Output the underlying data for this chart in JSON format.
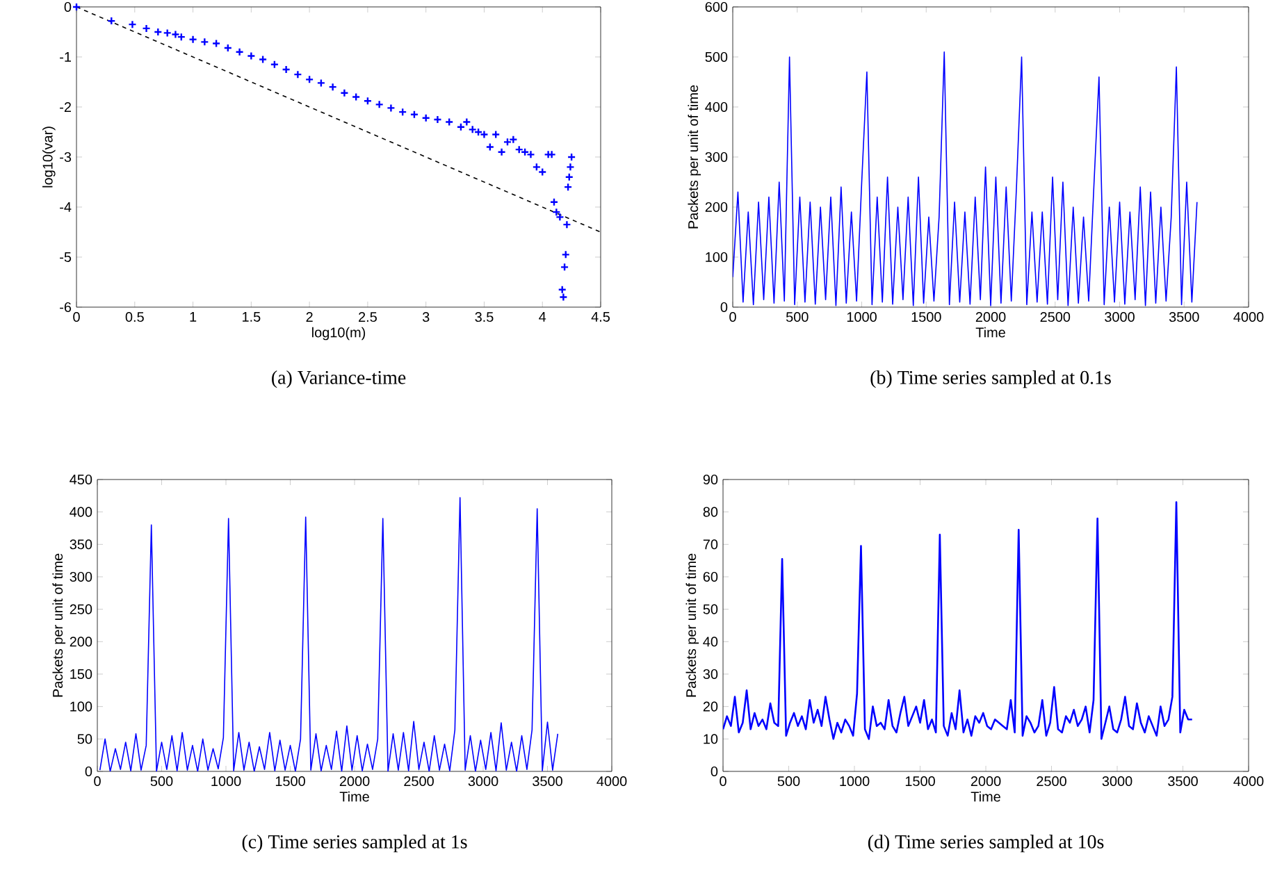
{
  "chart_data": [
    {
      "type": "scatter",
      "title": "(a) Variance-time",
      "xlabel": "log10(m)",
      "ylabel": "log10(var)",
      "xlim": [
        0,
        4.5
      ],
      "ylim": [
        -6,
        0
      ],
      "xticks": [
        0,
        0.5,
        1,
        1.5,
        2,
        2.5,
        3,
        3.5,
        4,
        4.5
      ],
      "yticks": [
        -6,
        -5,
        -4,
        -3,
        -2,
        -1,
        0
      ],
      "series": [
        {
          "type": "scatter",
          "color": "#0000ff",
          "marker": "cross",
          "x": [
            0,
            0.3,
            0.48,
            0.6,
            0.7,
            0.78,
            0.85,
            0.9,
            1.0,
            1.1,
            1.2,
            1.3,
            1.4,
            1.5,
            1.6,
            1.7,
            1.8,
            1.9,
            2.0,
            2.1,
            2.2,
            2.3,
            2.4,
            2.5,
            2.6,
            2.7,
            2.8,
            2.9,
            3.0,
            3.1,
            3.2,
            3.3,
            3.35,
            3.4,
            3.45,
            3.5,
            3.55,
            3.6,
            3.65,
            3.7,
            3.75,
            3.8,
            3.85,
            3.9,
            3.95,
            4.0,
            4.05,
            4.08,
            4.1,
            4.12,
            4.15,
            4.17,
            4.18,
            4.19,
            4.2,
            4.21,
            4.22,
            4.23,
            4.24,
            4.25
          ],
          "values": [
            0,
            -0.28,
            -0.35,
            -0.43,
            -0.5,
            -0.52,
            -0.55,
            -0.6,
            -0.65,
            -0.7,
            -0.73,
            -0.82,
            -0.9,
            -0.98,
            -1.05,
            -1.15,
            -1.25,
            -1.35,
            -1.45,
            -1.52,
            -1.6,
            -1.72,
            -1.8,
            -1.88,
            -1.95,
            -2.02,
            -2.1,
            -2.15,
            -2.22,
            -2.25,
            -2.3,
            -2.4,
            -2.3,
            -2.45,
            -2.5,
            -2.55,
            -2.8,
            -2.55,
            -2.9,
            -2.7,
            -2.65,
            -2.85,
            -2.9,
            -2.95,
            -3.2,
            -3.3,
            -2.95,
            -2.95,
            -3.9,
            -4.1,
            -4.2,
            -5.65,
            -5.8,
            -5.2,
            -4.95,
            -4.35,
            -3.6,
            -3.4,
            -3.2,
            -3.0
          ]
        },
        {
          "type": "line",
          "color": "#000000",
          "line_style": "dashed",
          "x": [
            0,
            4.5
          ],
          "values": [
            0,
            -4.5
          ]
        }
      ]
    },
    {
      "type": "line",
      "title": "(b) Time series sampled at 0.1s",
      "xlabel": "Time",
      "ylabel": "Packets per unit of time",
      "xlim": [
        0,
        4000
      ],
      "ylim": [
        0,
        600
      ],
      "xticks": [
        0,
        500,
        1000,
        1500,
        2000,
        2500,
        3000,
        3500,
        4000
      ],
      "yticks": [
        0,
        100,
        200,
        300,
        400,
        500,
        600
      ],
      "series": [
        {
          "color": "#0000ff",
          "x": [
            0,
            40,
            80,
            120,
            160,
            200,
            240,
            280,
            320,
            360,
            400,
            440,
            480,
            520,
            560,
            600,
            640,
            680,
            720,
            760,
            800,
            840,
            880,
            920,
            960,
            1000,
            1040,
            1080,
            1120,
            1160,
            1200,
            1240,
            1280,
            1320,
            1360,
            1400,
            1440,
            1480,
            1520,
            1560,
            1600,
            1640,
            1680,
            1720,
            1760,
            1800,
            1840,
            1880,
            1920,
            1960,
            2000,
            2040,
            2080,
            2120,
            2160,
            2200,
            2240,
            2280,
            2320,
            2360,
            2400,
            2440,
            2480,
            2520,
            2560,
            2600,
            2640,
            2680,
            2720,
            2760,
            2800,
            2840,
            2880,
            2920,
            2960,
            3000,
            3040,
            3080,
            3120,
            3160,
            3200,
            3240,
            3280,
            3320,
            3360,
            3400,
            3440,
            3480,
            3520,
            3560,
            3600
          ],
          "values": [
            60,
            230,
            10,
            190,
            5,
            210,
            15,
            220,
            8,
            250,
            12,
            500,
            5,
            220,
            10,
            210,
            6,
            200,
            15,
            220,
            3,
            240,
            8,
            190,
            12,
            250,
            470,
            5,
            220,
            10,
            260,
            6,
            200,
            15,
            220,
            3,
            260,
            8,
            180,
            12,
            180,
            510,
            5,
            210,
            10,
            190,
            6,
            220,
            15,
            280,
            3,
            260,
            8,
            240,
            12,
            240,
            500,
            5,
            190,
            10,
            190,
            6,
            260,
            15,
            250,
            3,
            200,
            8,
            180,
            12,
            240,
            460,
            5,
            200,
            10,
            210,
            6,
            190,
            15,
            240,
            3,
            230,
            8,
            200,
            12,
            180,
            480,
            5,
            250,
            10,
            210
          ]
        }
      ]
    },
    {
      "type": "line",
      "title": "(c) Time series sampled at 1s",
      "xlabel": "Time",
      "ylabel": "Packets per unit of time",
      "xlim": [
        0,
        4000
      ],
      "ylim": [
        0,
        450
      ],
      "xticks": [
        0,
        500,
        1000,
        1500,
        2000,
        2500,
        3000,
        3500,
        4000
      ],
      "yticks": [
        0,
        50,
        100,
        150,
        200,
        250,
        300,
        350,
        400,
        450
      ],
      "series": [
        {
          "color": "#0000ff",
          "x": [
            20,
            60,
            100,
            140,
            180,
            220,
            260,
            300,
            340,
            380,
            420,
            460,
            500,
            540,
            580,
            620,
            660,
            700,
            740,
            780,
            820,
            860,
            900,
            940,
            980,
            1020,
            1060,
            1100,
            1140,
            1180,
            1220,
            1260,
            1300,
            1340,
            1380,
            1420,
            1460,
            1500,
            1540,
            1580,
            1620,
            1660,
            1700,
            1740,
            1780,
            1820,
            1860,
            1900,
            1940,
            1980,
            2020,
            2060,
            2100,
            2140,
            2180,
            2220,
            2260,
            2300,
            2340,
            2380,
            2420,
            2460,
            2500,
            2540,
            2580,
            2620,
            2660,
            2700,
            2740,
            2780,
            2820,
            2860,
            2900,
            2940,
            2980,
            3020,
            3060,
            3100,
            3140,
            3180,
            3220,
            3260,
            3300,
            3340,
            3380,
            3420,
            3460,
            3500,
            3540,
            3580
          ],
          "values": [
            2,
            50,
            0,
            35,
            3,
            45,
            1,
            58,
            2,
            40,
            380,
            0,
            45,
            3,
            55,
            1,
            60,
            2,
            40,
            0,
            50,
            2,
            35,
            4,
            52,
            390,
            1,
            60,
            2,
            45,
            0,
            38,
            3,
            60,
            1,
            48,
            2,
            40,
            0,
            50,
            392,
            2,
            58,
            1,
            40,
            3,
            62,
            0,
            70,
            2,
            55,
            1,
            42,
            3,
            50,
            390,
            0,
            58,
            2,
            60,
            1,
            77,
            3,
            45,
            0,
            55,
            2,
            42,
            1,
            64,
            422,
            2,
            55,
            0,
            48,
            3,
            60,
            1,
            75,
            2,
            45,
            0,
            55,
            3,
            64,
            405,
            1,
            76,
            2,
            58
          ]
        }
      ]
    },
    {
      "type": "line",
      "title": "(d) Time series sampled at 10s",
      "xlabel": "Time",
      "ylabel": "Packets per unit of time",
      "xlim": [
        0,
        4000
      ],
      "ylim": [
        0,
        90
      ],
      "xticks": [
        0,
        500,
        1000,
        1500,
        2000,
        2500,
        3000,
        3500,
        4000
      ],
      "yticks": [
        0,
        10,
        20,
        30,
        40,
        50,
        60,
        70,
        80,
        90
      ],
      "series": [
        {
          "color": "#0000ff",
          "x": [
            0,
            30,
            60,
            90,
            120,
            150,
            180,
            210,
            240,
            270,
            300,
            330,
            360,
            390,
            420,
            450,
            480,
            510,
            540,
            570,
            600,
            630,
            660,
            690,
            720,
            750,
            780,
            810,
            840,
            870,
            900,
            930,
            960,
            990,
            1020,
            1050,
            1080,
            1110,
            1140,
            1170,
            1200,
            1230,
            1260,
            1290,
            1320,
            1350,
            1380,
            1410,
            1440,
            1470,
            1500,
            1530,
            1560,
            1590,
            1620,
            1650,
            1680,
            1710,
            1740,
            1770,
            1800,
            1830,
            1860,
            1890,
            1920,
            1950,
            1980,
            2010,
            2040,
            2070,
            2100,
            2130,
            2160,
            2190,
            2220,
            2250,
            2280,
            2310,
            2340,
            2370,
            2400,
            2430,
            2460,
            2490,
            2520,
            2550,
            2580,
            2610,
            2640,
            2670,
            2700,
            2730,
            2760,
            2790,
            2820,
            2850,
            2880,
            2910,
            2940,
            2970,
            3000,
            3030,
            3060,
            3090,
            3120,
            3150,
            3180,
            3210,
            3240,
            3270,
            3300,
            3330,
            3360,
            3390,
            3420,
            3450,
            3480,
            3510,
            3540,
            3570
          ],
          "values": [
            13,
            17,
            14,
            23,
            12,
            15,
            25,
            13,
            18,
            14,
            16,
            13,
            21,
            15,
            14,
            65.5,
            11,
            15,
            18,
            14,
            17,
            13,
            22,
            15,
            19,
            14,
            23,
            16,
            10,
            15,
            12,
            16,
            14,
            11,
            24,
            69.5,
            13,
            10,
            20,
            14,
            15,
            13,
            22,
            14,
            12,
            18,
            23,
            14,
            17,
            20,
            15,
            22,
            13,
            16,
            12,
            73,
            14,
            11,
            18,
            13,
            25,
            12,
            16,
            11,
            17,
            15,
            18,
            14,
            13,
            16,
            15,
            14,
            13,
            22,
            12,
            74.5,
            11,
            17,
            15,
            12,
            14,
            22,
            11,
            15,
            26,
            13,
            12,
            17,
            15,
            19,
            14,
            16,
            20,
            12,
            22,
            78,
            10,
            15,
            20,
            13,
            12,
            16,
            23,
            14,
            13,
            21,
            15,
            12,
            17,
            14,
            11,
            20,
            14,
            16,
            23,
            83,
            12,
            19,
            16,
            16
          ]
        }
      ]
    }
  ]
}
